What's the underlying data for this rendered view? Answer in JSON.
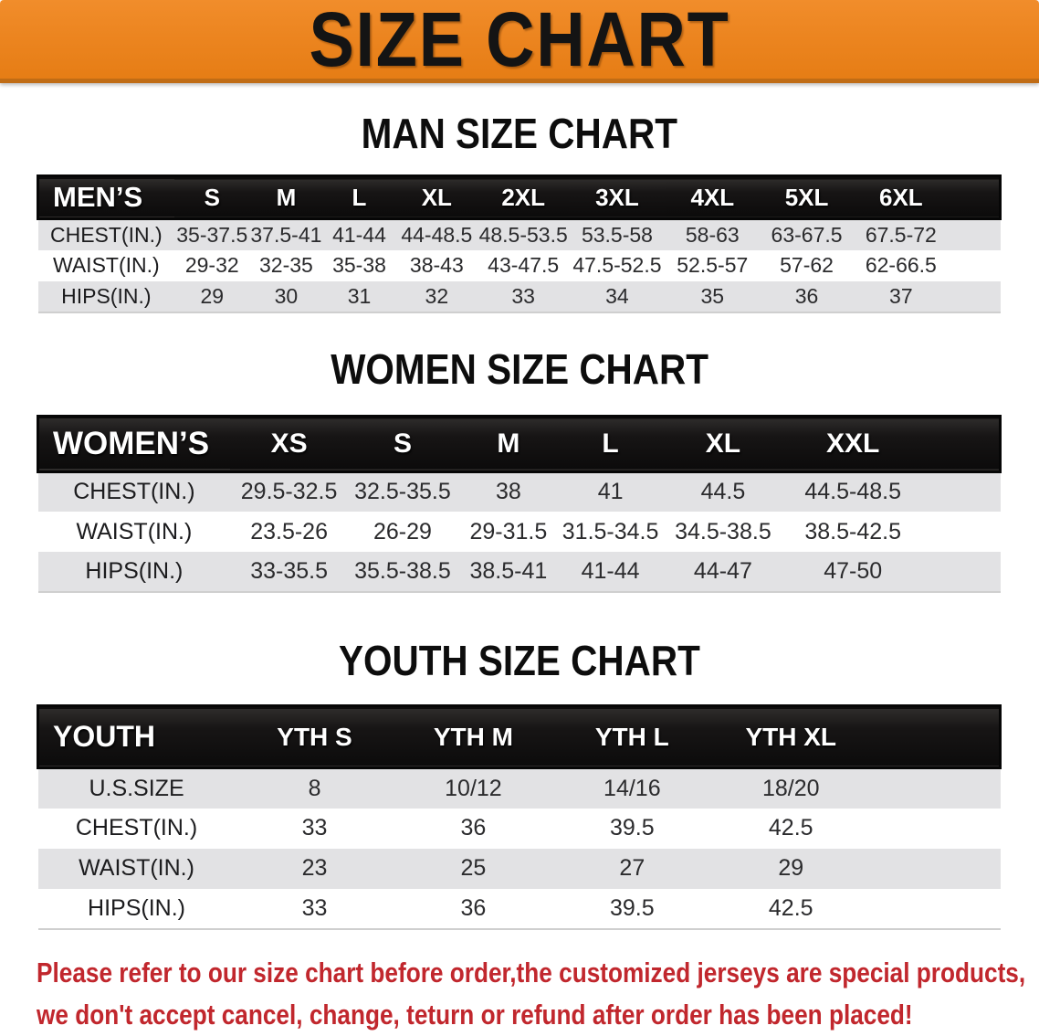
{
  "banner": {
    "title": "SIZE CHART",
    "background_color": "#EC8520",
    "text_color": "#141414"
  },
  "men_section": {
    "title": "MAN SIZE CHART"
  },
  "women_section": {
    "title": "WOMEN SIZE CHART"
  },
  "youth_section": {
    "title": "YOUTH SIZE CHART"
  },
  "men_table": {
    "label": "MEN’S",
    "sizes": [
      "S",
      "M",
      "L",
      "XL",
      "2XL",
      "3XL",
      "4XL",
      "5XL",
      "6XL"
    ],
    "rows": [
      {
        "label": "CHEST(IN.)",
        "values": [
          "35-37.5",
          "37.5-41",
          "41-44",
          "44-48.5",
          "48.5-53.5",
          "53.5-58",
          "58-63",
          "63-67.5",
          "67.5-72"
        ]
      },
      {
        "label": "WAIST(IN.)",
        "values": [
          "29-32",
          "32-35",
          "35-38",
          "38-43",
          "43-47.5",
          "47.5-52.5",
          "52.5-57",
          "57-62",
          "62-66.5"
        ]
      },
      {
        "label": "HIPS(IN.)",
        "values": [
          "29",
          "30",
          "31",
          "32",
          "33",
          "34",
          "35",
          "36",
          "37"
        ]
      }
    ]
  },
  "women_table": {
    "label": "WOMEN’S",
    "sizes": [
      "XS",
      "S",
      "M",
      "L",
      "XL",
      "XXL"
    ],
    "rows": [
      {
        "label": "CHEST(IN.)",
        "values": [
          "29.5-32.5",
          "32.5-35.5",
          "38",
          "41",
          "44.5",
          "44.5-48.5"
        ]
      },
      {
        "label": "WAIST(IN.)",
        "values": [
          "23.5-26",
          "26-29",
          "29-31.5",
          "31.5-34.5",
          "34.5-38.5",
          "38.5-42.5"
        ]
      },
      {
        "label": "HIPS(IN.)",
        "values": [
          "33-35.5",
          "35.5-38.5",
          "38.5-41",
          "41-44",
          "44-47",
          "47-50"
        ]
      }
    ]
  },
  "youth_table": {
    "label": "YOUTH",
    "sizes": [
      "YTH S",
      "YTH M",
      "YTH L",
      "YTH XL"
    ],
    "rows": [
      {
        "label": "U.S.SIZE",
        "values": [
          "8",
          "10/12",
          "14/16",
          "18/20"
        ]
      },
      {
        "label": "CHEST(IN.)",
        "values": [
          "33",
          "36",
          "39.5",
          "42.5"
        ]
      },
      {
        "label": "WAIST(IN.)",
        "values": [
          "23",
          "25",
          "27",
          "29"
        ]
      },
      {
        "label": "HIPS(IN.)",
        "values": [
          "33",
          "36",
          "39.5",
          "42.5"
        ]
      }
    ]
  },
  "disclaimer": {
    "line1": "Please refer to our size chart before order,the customized jerseys are special products,",
    "line2": "we don't accept cancel, change, teturn or refund after order has been placed!",
    "color": "#C1272D"
  }
}
